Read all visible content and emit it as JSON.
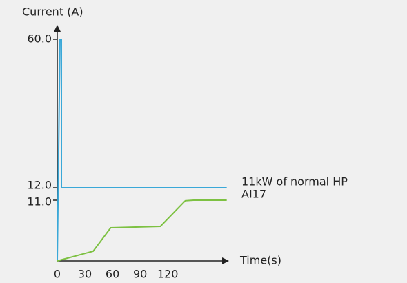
{
  "chart_data": {
    "type": "line",
    "y_label": "Current (A)",
    "x_label": "Time(s)",
    "xlim": [
      0,
      185
    ],
    "xticks": [
      0,
      30,
      60,
      90,
      120
    ],
    "ylim": [
      0,
      60
    ],
    "yticks": [
      {
        "value": 11,
        "label": "11.0"
      },
      {
        "value": 12,
        "label": "12.0"
      },
      {
        "value": 60,
        "label": "60.0"
      }
    ],
    "series": [
      {
        "name": "11kW of normal HP",
        "color": "#3aa8d8",
        "x": [
          0,
          3,
          4.5,
          4.5,
          184
        ],
        "values": [
          0,
          60,
          60,
          12,
          12
        ]
      },
      {
        "name": "AI17",
        "color": "#7dc142",
        "x": [
          0,
          39,
          58,
          112,
          139,
          148,
          184
        ],
        "values": [
          0,
          1.75,
          6,
          6.25,
          10.9,
          11,
          11
        ]
      }
    ]
  }
}
